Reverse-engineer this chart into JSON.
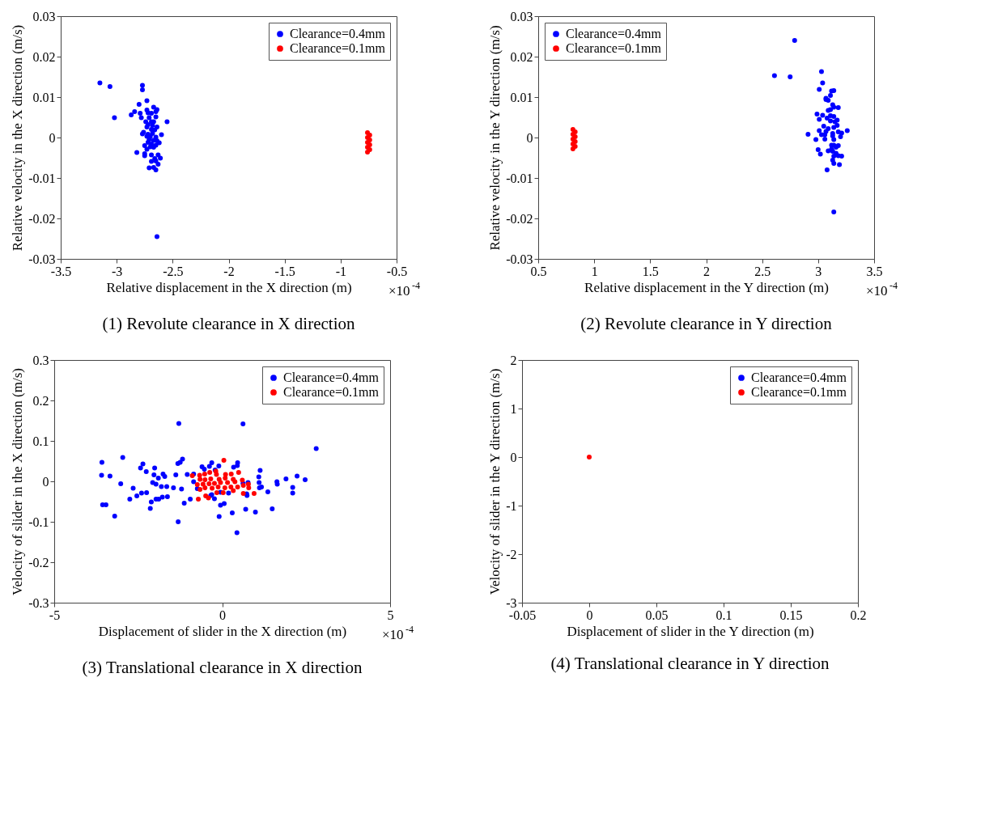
{
  "chart_data": [
    {
      "type": "scatter",
      "title": "(1) Revolute clearance in X direction",
      "xlabel": "Relative displacement in the X direction (m)",
      "ylabel": "Relative velocity in the X direction (m/s)",
      "annotations": [
        "×10$^{-4}$"
      ],
      "xlim": [
        -3.5,
        -0.5
      ],
      "xticks": [
        -3.5,
        -3,
        -2.5,
        -2,
        -1.5,
        -1,
        -0.5
      ],
      "ylim": [
        -0.03,
        0.03
      ],
      "yticks": [
        -0.03,
        -0.02,
        -0.01,
        0,
        0.01,
        0.02,
        0.03
      ],
      "legend": "top right",
      "marker": "circle",
      "series": [
        {
          "name": "Clearance=0.4mm",
          "color": "#0000ff",
          "x": [
            -3.15,
            -3.06,
            -2.77,
            -2.77,
            -2.73,
            -2.8,
            -2.67,
            -2.64,
            -2.84,
            -2.87,
            -2.73,
            -2.72,
            -2.69,
            -2.65,
            -2.79,
            -3.02,
            -2.78,
            -2.71,
            -2.65,
            -2.55,
            -2.74,
            -2.69,
            -2.67,
            -2.72,
            -2.68,
            -2.64,
            -2.73,
            -2.69,
            -2.66,
            -2.76,
            -2.77,
            -2.72,
            -2.68,
            -2.6,
            -2.73,
            -2.7,
            -2.65,
            -2.71,
            -2.67,
            -2.64,
            -2.62,
            -2.72,
            -2.69,
            -2.65,
            -2.75,
            -2.7,
            -2.67,
            -2.73,
            -2.82,
            -2.75,
            -2.75,
            -2.69,
            -2.63,
            -2.66,
            -2.61,
            -2.65,
            -2.69,
            -2.63,
            -2.71,
            -2.67,
            -2.65,
            -2.64
          ],
          "values": [
            0.0135,
            0.0126,
            0.0129,
            0.0118,
            0.0091,
            0.0082,
            0.0075,
            0.0069,
            0.0064,
            0.0056,
            0.0068,
            0.0061,
            0.006,
            0.0064,
            0.006,
            0.0049,
            0.0049,
            0.0049,
            0.0051,
            0.0039,
            0.0039,
            0.0039,
            0.0039,
            0.0032,
            0.003,
            0.0026,
            0.0026,
            0.002,
            0.0019,
            0.0013,
            0.0009,
            0.0008,
            0.001,
            0.0007,
            0.0003,
            0.0002,
            0.0001,
            -0.0005,
            -0.0007,
            -0.0008,
            -0.0013,
            -0.0012,
            -0.0016,
            -0.0019,
            -0.002,
            -0.0023,
            -0.0024,
            -0.0029,
            -0.0037,
            -0.004,
            -0.0045,
            -0.0043,
            -0.0043,
            -0.0052,
            -0.0051,
            -0.0058,
            -0.0059,
            -0.0066,
            -0.0075,
            -0.0074,
            -0.008,
            -0.0245
          ]
        },
        {
          "name": "Clearance=0.1mm",
          "color": "#ff0000",
          "x": [
            -0.76,
            -0.74,
            -0.76,
            -0.74,
            -0.76,
            -0.74,
            -0.76,
            -0.74,
            -0.76
          ],
          "values": [
            0.0012,
            0.0006,
            0,
            -0.0006,
            -0.0012,
            -0.0018,
            -0.0024,
            -0.003,
            -0.0036
          ]
        }
      ]
    },
    {
      "type": "scatter",
      "title": "(2) Revolute clearance in Y direction",
      "xlabel": "Relative displacement in the Y direction (m)",
      "ylabel": "Relative velocity in the Y direction (m/s)",
      "annotations": [
        "×10$^{-4}$"
      ],
      "xlim": [
        0.5,
        3.5
      ],
      "xticks": [
        0.5,
        1,
        1.5,
        2,
        2.5,
        3,
        3.5
      ],
      "ylim": [
        -0.03,
        0.03
      ],
      "yticks": [
        -0.03,
        -0.02,
        -0.01,
        0,
        0.01,
        0.02,
        0.03
      ],
      "legend": "top left",
      "marker": "circle",
      "series": [
        {
          "name": "Clearance=0.4mm",
          "color": "#0000ff",
          "x": [
            2.79,
            2.61,
            2.75,
            3.03,
            3.04,
            3.01,
            3.12,
            3.14,
            3.11,
            3.07,
            3.09,
            3.07,
            3.13,
            3.14,
            3.18,
            3.11,
            3.09,
            2.99,
            3.04,
            3.11,
            3.14,
            3.01,
            3.08,
            3.17,
            3.11,
            3.15,
            3.05,
            3.09,
            3.14,
            3.17,
            3.01,
            3.07,
            3.13,
            3.18,
            3.21,
            3.26,
            2.91,
            3.03,
            3.06,
            3.13,
            3.2,
            2.98,
            3.06,
            3.14,
            3.12,
            3.14,
            3.18,
            3.16,
            3.0,
            3.09,
            3.12,
            3.13,
            3.16,
            3.02,
            3.14,
            3.18,
            3.21,
            3.13,
            3.14,
            3.19,
            3.08,
            3.14
          ],
          "values": [
            0.024,
            0.0153,
            0.015,
            0.0163,
            0.0135,
            0.0119,
            0.0115,
            0.0116,
            0.0104,
            0.0097,
            0.0092,
            0.0094,
            0.0081,
            0.0075,
            0.0074,
            0.0069,
            0.0067,
            0.0058,
            0.0055,
            0.0054,
            0.0052,
            0.0045,
            0.0048,
            0.0043,
            0.0041,
            0.0039,
            0.0028,
            0.0022,
            0.0025,
            0.003,
            0.0017,
            0.0015,
            0.001,
            0.0014,
            0.0011,
            0.0017,
            0.0008,
            0.0007,
            0.0007,
            0.0004,
            0.0002,
            -0.0005,
            -0.0004,
            -0.0005,
            -0.0019,
            -0.0019,
            -0.002,
            -0.0024,
            -0.003,
            -0.0033,
            -0.0029,
            -0.0034,
            -0.0039,
            -0.0041,
            -0.0046,
            -0.0045,
            -0.0046,
            -0.0056,
            -0.0064,
            -0.0067,
            -0.008,
            -0.0184
          ]
        },
        {
          "name": "Clearance=0.1mm",
          "color": "#ff0000",
          "x": [
            0.81,
            0.83,
            0.81,
            0.83,
            0.81,
            0.83,
            0.81,
            0.83,
            0.81
          ],
          "values": [
            0.002,
            0.0014,
            0.0008,
            0.0002,
            -0.0004,
            -0.001,
            -0.0016,
            -0.0022,
            -0.0028
          ]
        }
      ]
    },
    {
      "type": "scatter",
      "title": "(3) Translational clearance in X direction",
      "xlabel": "Displacement of slider in the X direction (m)",
      "ylabel": "Velocity of slider in the X direction (m/s)",
      "annotations": [
        "×10$^{-4}$"
      ],
      "xlim": [
        -5,
        5
      ],
      "xticks": [
        -5,
        0,
        5
      ],
      "ylim": [
        -0.3,
        0.3
      ],
      "yticks": [
        -0.3,
        -0.2,
        -0.1,
        0,
        0.1,
        0.2,
        0.3
      ],
      "legend": "top right",
      "marker": "circle",
      "series": [
        {
          "name": "Clearance=0.4mm",
          "color": "#0000ff",
          "x": [
            -1.29,
            0.62,
            2.8,
            -2.96,
            -3.58,
            -1.18,
            -1.32,
            -1.25,
            -2.36,
            -2.43,
            -2.01,
            -2.26,
            -3.59,
            -3.34,
            -2.03,
            -1.76,
            -1.71,
            -1.9,
            -1.38,
            -1.04,
            -0.85,
            -0.31,
            -0.6,
            -0.53,
            -0.38,
            -0.21,
            -0.1,
            0.46,
            0.45,
            0.34,
            1.13,
            1.09,
            1.9,
            2.23,
            2.47,
            1.63,
            1.64,
            1.1,
            0.77,
            0.62,
            -3.02,
            -2.07,
            -1.97,
            -1.81,
            -1.65,
            -2.65,
            -1.45,
            -1.21,
            -0.85,
            -0.74,
            1.17,
            1.11,
            2.1,
            2.1,
            1.36,
            0.73,
            0.74,
            0.19,
            -0.05,
            -0.31,
            -0.34,
            -2.4,
            -2.25,
            -2.54,
            -2.75,
            -2.11,
            -1.97,
            -1.89,
            -1.78,
            -1.63,
            -0.95,
            -1.13,
            -0.23,
            -3.56,
            -3.46,
            -2.14,
            -0.05,
            0.06,
            0.7,
            0.99,
            1.49,
            0.3,
            -3.2,
            -0.09,
            -1.31,
            0.44
          ],
          "values": [
            0.143,
            0.142,
            0.081,
            0.059,
            0.047,
            0.055,
            0.044,
            0.047,
            0.043,
            0.033,
            0.033,
            0.024,
            0.015,
            0.013,
            0.016,
            0.018,
            0.012,
            0.008,
            0.016,
            0.017,
            0.018,
            0.046,
            0.036,
            0.03,
            0.037,
            0.028,
            0.038,
            0.046,
            0.039,
            0.035,
            0.027,
            0.011,
            0.006,
            0.013,
            0.004,
            -0.001,
            -0.007,
            -0.003,
            -0.003,
            -0.005,
            -0.006,
            -0.003,
            -0.007,
            -0.013,
            -0.013,
            -0.017,
            -0.016,
            -0.019,
            -0.001,
            -0.018,
            -0.014,
            -0.016,
            -0.015,
            -0.029,
            -0.026,
            -0.031,
            -0.035,
            -0.029,
            -0.027,
            -0.033,
            -0.035,
            -0.029,
            -0.028,
            -0.036,
            -0.044,
            -0.051,
            -0.044,
            -0.044,
            -0.039,
            -0.038,
            -0.044,
            -0.054,
            -0.043,
            -0.058,
            -0.058,
            -0.067,
            -0.059,
            -0.055,
            -0.069,
            -0.076,
            -0.068,
            -0.078,
            -0.086,
            -0.087,
            -0.1,
            -0.127
          ]
        },
        {
          "name": "Clearance=0.1mm",
          "color": "#ff0000",
          "x": [
            0.05,
            -0.89,
            -0.67,
            -0.52,
            -0.37,
            -0.19,
            -0.17,
            0.1,
            0.27,
            0.49,
            -0.66,
            -0.51,
            -0.34,
            -0.09,
            0.09,
            0.33,
            0.6,
            -0.74,
            -0.57,
            -0.39,
            -0.23,
            -0.05,
            0.16,
            0.38,
            0.63,
            0.78,
            -0.66,
            -0.51,
            -0.3,
            -0.12,
            0.08,
            0.26,
            0.46,
            -0.71,
            -0.49,
            -0.41,
            -0.16,
            0.03,
            0.33,
            0.63,
            0.95,
            0.79
          ],
          "values": [
            0.052,
            0.014,
            0.015,
            0.018,
            0.022,
            0.025,
            0.017,
            0.017,
            0.018,
            0.022,
            0.005,
            0.004,
            0.006,
            0.005,
            0.008,
            0.005,
            0.003,
            -0.008,
            -0.007,
            -0.006,
            -0.005,
            -0.003,
            -0.003,
            -0.001,
            -0.01,
            -0.007,
            -0.02,
            -0.016,
            -0.017,
            -0.014,
            -0.016,
            -0.014,
            -0.014,
            -0.044,
            -0.036,
            -0.041,
            -0.028,
            -0.028,
            -0.023,
            -0.03,
            -0.03,
            -0.016
          ]
        }
      ]
    },
    {
      "type": "scatter",
      "title": "(4) Translational clearance in Y direction",
      "xlabel": "Displacement of slider in the Y direction (m)",
      "ylabel": "Velocity of slider in the Y direction (m/s)",
      "xlim": [
        -0.05,
        0.2
      ],
      "xticks": [
        -0.05,
        0,
        0.05,
        0.1,
        0.15,
        0.2
      ],
      "ylim": [
        -3,
        2
      ],
      "yticks": [
        -3,
        -2,
        -1,
        0,
        1,
        2
      ],
      "legend": "top right",
      "marker": "circle",
      "series": [
        {
          "name": "Clearance=0.4mm",
          "color": "#0000ff"
        },
        {
          "name": "Clearance=0.1mm",
          "color": "#ff0000",
          "x": [
            0
          ],
          "values": [
            0
          ]
        }
      ]
    }
  ]
}
